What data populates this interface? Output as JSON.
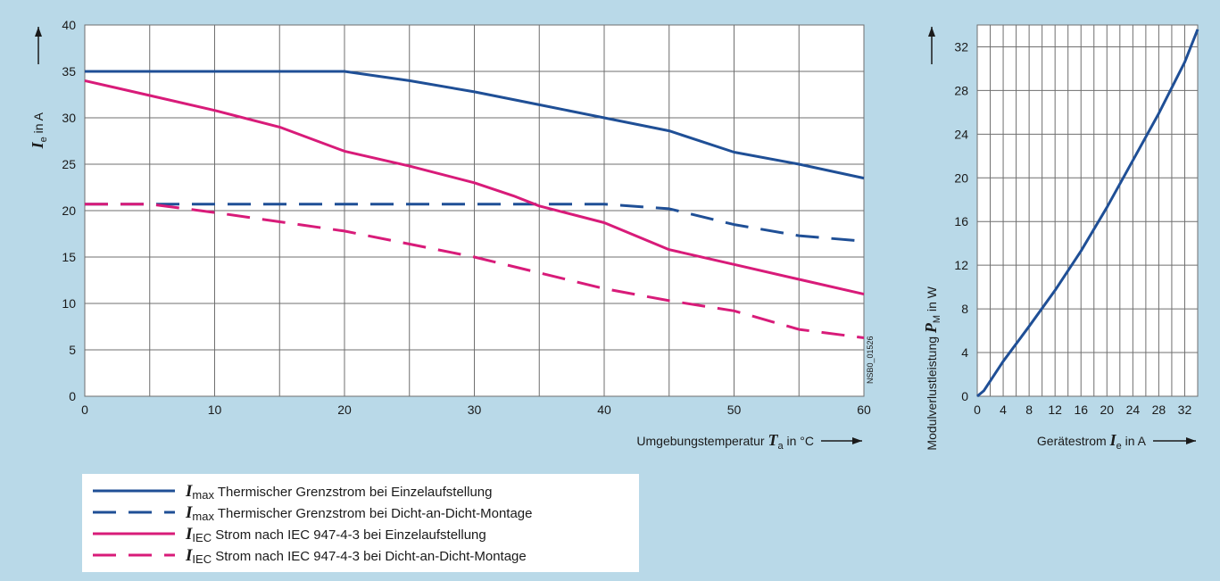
{
  "colors": {
    "background": "#b9d9e8",
    "plot_bg": "#ffffff",
    "grid": "#6f6f6f",
    "blue": "#1f4f96",
    "magenta": "#d81b79"
  },
  "watermark": "NSB0_01526",
  "chart_data": [
    {
      "type": "line",
      "x_axis": {
        "label_prefix": "Umgebungstemperatur",
        "label_symbol": "T",
        "label_subscript": "a",
        "label_unit": "in °C",
        "ticks": [
          "0",
          "10",
          "20",
          "30",
          "40",
          "50",
          "60"
        ],
        "range": [
          0,
          60
        ]
      },
      "y_axis": {
        "label_symbol": "I",
        "label_subscript": "e",
        "label_unit": "in A",
        "ticks": [
          "0",
          "5",
          "10",
          "15",
          "20",
          "25",
          "30",
          "35",
          "40"
        ],
        "range": [
          0,
          40
        ]
      },
      "grid": true,
      "series": [
        {
          "style": "solid",
          "color": "#1f4f96",
          "x": [
            0,
            10,
            20,
            25,
            30,
            35,
            40,
            45,
            50,
            55,
            60
          ],
          "y": [
            35,
            35,
            35,
            34,
            32.8,
            31.4,
            30,
            28.6,
            26.3,
            25,
            23.5
          ]
        },
        {
          "style": "dashed",
          "color": "#1f4f96",
          "x": [
            0,
            10,
            20,
            30,
            40,
            45,
            50,
            55,
            60
          ],
          "y": [
            20.7,
            20.7,
            20.7,
            20.7,
            20.7,
            20.2,
            18.5,
            17.3,
            16.7
          ]
        },
        {
          "style": "solid",
          "color": "#d81b79",
          "x": [
            0,
            5,
            10,
            15,
            20,
            25,
            30,
            33,
            35,
            40,
            45,
            50,
            55,
            60
          ],
          "y": [
            34,
            32.4,
            30.8,
            29,
            26.4,
            24.8,
            23,
            21.6,
            20.5,
            18.7,
            15.8,
            14.2,
            12.6,
            11
          ]
        },
        {
          "style": "dashed",
          "color": "#d81b79",
          "x": [
            0,
            5,
            10,
            20,
            30,
            40,
            45,
            50,
            55,
            60
          ],
          "y": [
            20.7,
            20.7,
            19.8,
            17.8,
            15,
            11.6,
            10.3,
            9.2,
            7.2,
            6.3
          ]
        }
      ]
    },
    {
      "type": "line",
      "x_axis": {
        "label_prefix": "Gerätestrom",
        "label_symbol": "I",
        "label_subscript": "e",
        "label_unit": "in A",
        "ticks": [
          "0",
          "4",
          "8",
          "12",
          "16",
          "20",
          "24",
          "28",
          "32"
        ],
        "range": [
          0,
          34
        ]
      },
      "y_axis": {
        "label_prefix": "Modulverlustleistung",
        "label_symbol": "P",
        "label_subscript": "M",
        "label_unit": "in W",
        "ticks": [
          "0",
          "4",
          "8",
          "12",
          "16",
          "20",
          "24",
          "28",
          "32"
        ],
        "range": [
          0,
          34
        ]
      },
      "grid": true,
      "series": [
        {
          "style": "solid",
          "color": "#1f4f96",
          "x": [
            0,
            1,
            4,
            8,
            12,
            16,
            20,
            24,
            28,
            32,
            34
          ],
          "y": [
            0,
            0.5,
            3.2,
            6.4,
            9.7,
            13.3,
            17.3,
            21.6,
            25.9,
            30.6,
            33.6
          ]
        }
      ]
    }
  ],
  "legend": [
    {
      "style": "solid",
      "color": "#1f4f96",
      "symbol": "I",
      "subscript": "max",
      "text": "Thermischer Grenzstrom bei Einzelaufstellung"
    },
    {
      "style": "dashed",
      "color": "#1f4f96",
      "symbol": "I",
      "subscript": "max",
      "text": "Thermischer Grenzstrom bei Dicht-an-Dicht-Montage"
    },
    {
      "style": "solid",
      "color": "#d81b79",
      "symbol": "I",
      "subscript": "IEC",
      "text": "Strom nach IEC 947-4-3 bei Einzelaufstellung"
    },
    {
      "style": "dashed",
      "color": "#d81b79",
      "symbol": "I",
      "subscript": "IEC",
      "text": "Strom nach IEC 947-4-3 bei Dicht-an-Dicht-Montage"
    }
  ]
}
